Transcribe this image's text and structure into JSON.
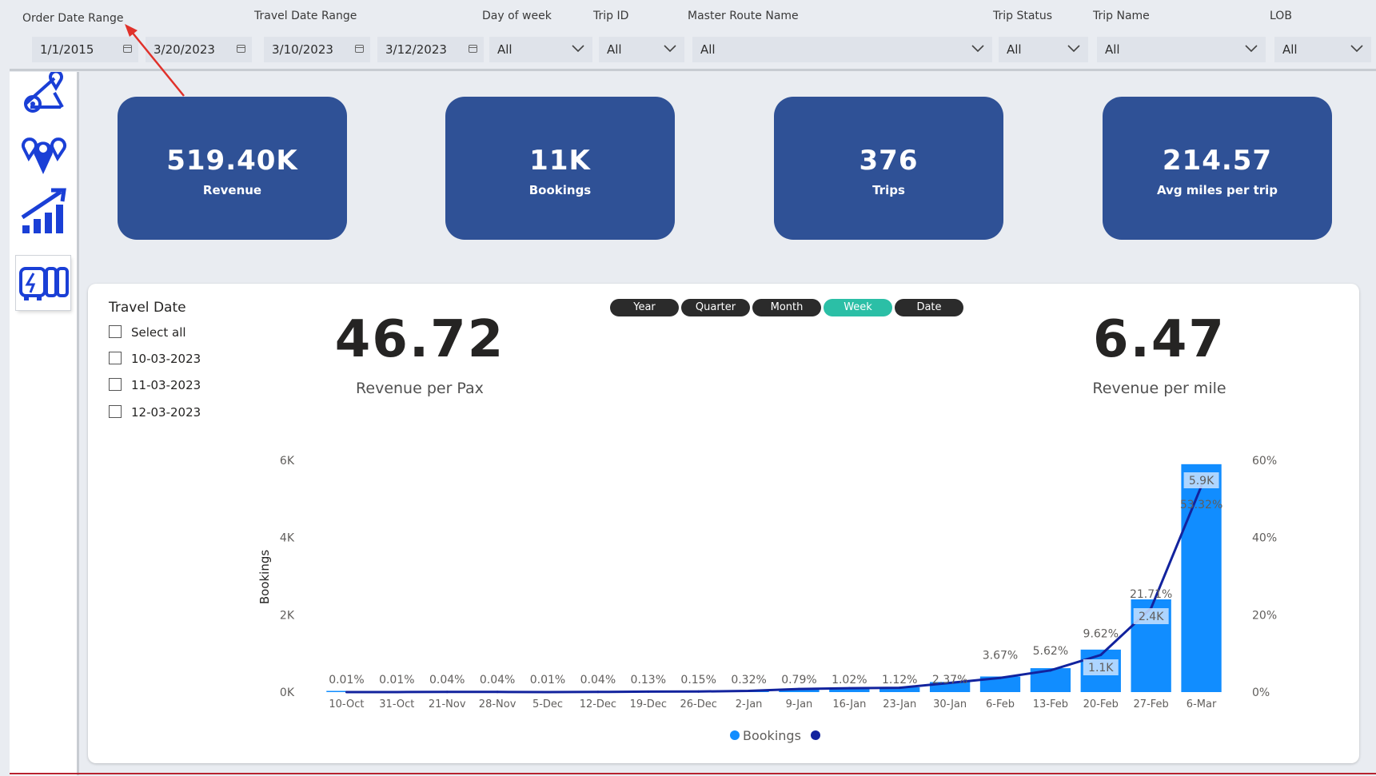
{
  "filters": {
    "order_date_range": {
      "label": "Order Date Range",
      "start": "1/1/2015",
      "end": "3/20/2023"
    },
    "travel_date_range": {
      "label": "Travel Date Range",
      "start": "3/10/2023",
      "end": "3/12/2023"
    },
    "day_of_week": {
      "label": "Day of week",
      "value": "All"
    },
    "trip_id": {
      "label": "Trip ID",
      "value": "All"
    },
    "master_route_name": {
      "label": "Master Route Name",
      "value": "All"
    },
    "trip_status": {
      "label": "Trip Status",
      "value": "All"
    },
    "trip_name": {
      "label": "Trip Name",
      "value": "All"
    },
    "lob": {
      "label": "LOB",
      "value": "All"
    }
  },
  "nav": [
    "route-icon",
    "map-pins-icon",
    "growth-chart-icon",
    "bus-fleet-icon"
  ],
  "kpis": [
    {
      "value": "519.40K",
      "label": "Revenue"
    },
    {
      "value": "11K",
      "label": "Bookings"
    },
    {
      "value": "376",
      "label": "Trips"
    },
    {
      "value": "214.57",
      "label": "Avg miles per trip"
    }
  ],
  "travel_date_slicer": {
    "title": "Travel Date",
    "options": [
      "Select all",
      "10-03-2023",
      "11-03-2023",
      "12-03-2023"
    ]
  },
  "granularity": {
    "options": [
      "Year",
      "Quarter",
      "Month",
      "Week",
      "Date"
    ],
    "selected": "Week"
  },
  "metrics": {
    "revenue_per_pax": {
      "value": "46.72",
      "label": "Revenue per Pax"
    },
    "revenue_per_mile": {
      "value": "6.47",
      "label": "Revenue per mile"
    }
  },
  "colors": {
    "bar": "#118dff",
    "line": "#12239e",
    "kpi": "#2f5196",
    "selected_pill": "#2bbfa6"
  },
  "chart_data": {
    "type": "bar",
    "categories": [
      "10-Oct",
      "31-Oct",
      "21-Nov",
      "28-Nov",
      "5-Dec",
      "12-Dec",
      "19-Dec",
      "26-Dec",
      "2-Jan",
      "9-Jan",
      "16-Jan",
      "23-Jan",
      "30-Jan",
      "6-Feb",
      "13-Feb",
      "20-Feb",
      "27-Feb",
      "6-Mar"
    ],
    "series": [
      {
        "name": "Bookings",
        "kind": "bar",
        "axis": "left",
        "values": [
          1,
          1,
          4,
          4,
          1,
          4,
          14,
          16,
          35,
          87,
          112,
          123,
          261,
          404,
          619,
          1100,
          2400,
          5900
        ]
      },
      {
        "kind": "line",
        "axis": "right",
        "unit": "%",
        "values": [
          0.01,
          0.01,
          0.04,
          0.04,
          0.01,
          0.04,
          0.13,
          0.15,
          0.32,
          0.79,
          1.02,
          1.12,
          2.37,
          3.67,
          5.62,
          9.62,
          21.71,
          53.32
        ],
        "labels": [
          "0.01%",
          "0.01%",
          "0.04%",
          "0.04%",
          "0.01%",
          "0.04%",
          "0.13%",
          "0.15%",
          "0.32%",
          "0.79%",
          "1.02%",
          "1.12%",
          "2.37%",
          "3.67%",
          "5.62%",
          "9.62%",
          "21.71%",
          "53.32%"
        ]
      }
    ],
    "bar_labels": {
      "15": "1.1K",
      "16": "2.4K",
      "17": "5.9K"
    },
    "ylabel": "Bookings",
    "y_ticks": [
      "0K",
      "2K",
      "4K",
      "6K"
    ],
    "ylim": [
      0,
      6000
    ],
    "y2_ticks": [
      "0%",
      "20%",
      "40%",
      "60%"
    ],
    "y2lim": [
      0,
      60
    ],
    "legend": {
      "position": "bottom",
      "entries": [
        "Bookings"
      ]
    }
  }
}
